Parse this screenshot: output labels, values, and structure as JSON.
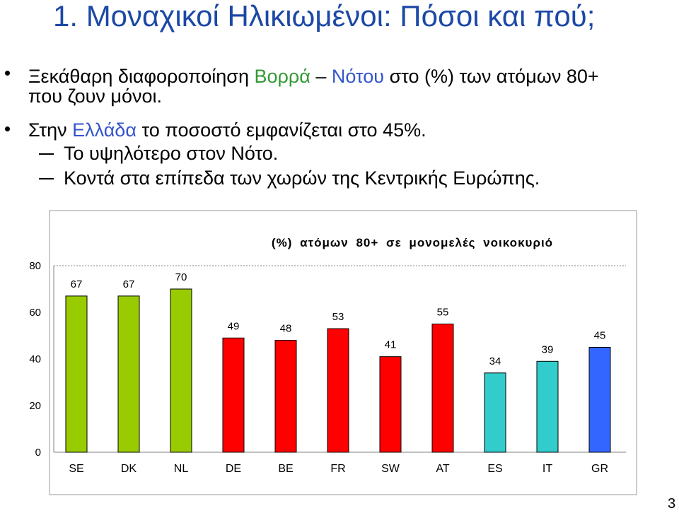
{
  "slide": {
    "title": "1. Μοναχικοί Ηλικιωμένοι: Πόσοι και πού;",
    "page_number": "3"
  },
  "colors": {
    "title": "#1c48a6",
    "text": "#000000",
    "north": "#339933",
    "south": "#3355cc",
    "chart_frame": "#9a9a9a",
    "axis": "#808080"
  },
  "bullets": [
    {
      "lines": [
        [
          "Ξεκάθαρη διαφοροποίηση ",
          "Βορρά",
          " – ",
          "Νότου",
          " στο (%) των ατόμων 80+"
        ],
        [
          "που ζουν μόνοι."
        ]
      ]
    },
    {
      "lines": [
        [
          "Στην ",
          "Ελλάδα",
          " το ποσοστό εμφανίζεται στο 45%."
        ]
      ],
      "sub_bullets": [
        "Το υψηλότερο στον Νότο.",
        "Κοντά στα επίπεδα των χωρών της Κεντρικής Ευρώπης."
      ]
    }
  ],
  "chart_data": {
    "type": "bar",
    "title": "(%) ατόμων 80+ σε μονομελές νοικοκυριό",
    "categories": [
      "SE",
      "DK",
      "NL",
      "DE",
      "BE",
      "FR",
      "SW",
      "AT",
      "ES",
      "IT",
      "GR"
    ],
    "values": [
      67,
      67,
      70,
      49,
      48,
      53,
      41,
      55,
      34,
      39,
      45
    ],
    "bar_colors": [
      "#99cc00",
      "#99cc00",
      "#99cc00",
      "#ff0000",
      "#ff0000",
      "#ff0000",
      "#ff0000",
      "#ff0000",
      "#33cccc",
      "#33cccc",
      "#3366ff"
    ],
    "ylim": [
      0,
      80
    ],
    "yticks": [
      0,
      20,
      40,
      60,
      80
    ],
    "data_labels": true,
    "grid": false
  }
}
